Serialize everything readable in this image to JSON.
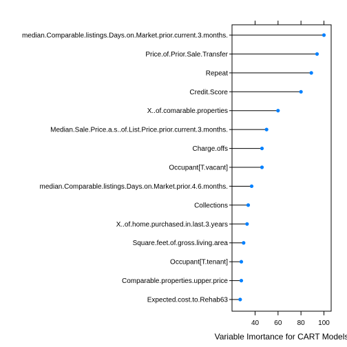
{
  "chart_data": {
    "type": "dot",
    "xlabel": "Variable Imortance for CART Models",
    "xlim": [
      25,
      105
    ],
    "xticks": [
      40,
      60,
      80,
      100
    ],
    "grid": false,
    "colors": {
      "point": "#0080ff",
      "line": "#000000",
      "frame": "#000000"
    },
    "categories": [
      "median.Comparable.listings.Days.on.Market.prior.current.3.months.",
      "Price.of.Prior.Sale.Transfer",
      "Repeat",
      "Credit.Score",
      "X..of.comarable.properties",
      "Median.Sale.Price.a.s..of.List.Price.prior.current.3.months.",
      "Charge.offs",
      "Occupant[T.vacant]",
      "median.Comparable.listings.Days.on.Market.prior.4.6.months.",
      "Collections",
      "X..of.home.purchased.in.last.3.years",
      "Square.feet.of.gross.living.area",
      "Occupant[T.tenant]",
      "Comparable.properties.upper.price",
      "Expected.cost.to.Rehab63"
    ],
    "values": [
      100,
      94,
      89,
      80,
      60,
      50,
      46,
      46,
      37,
      34,
      33,
      30,
      28,
      28,
      27
    ]
  }
}
